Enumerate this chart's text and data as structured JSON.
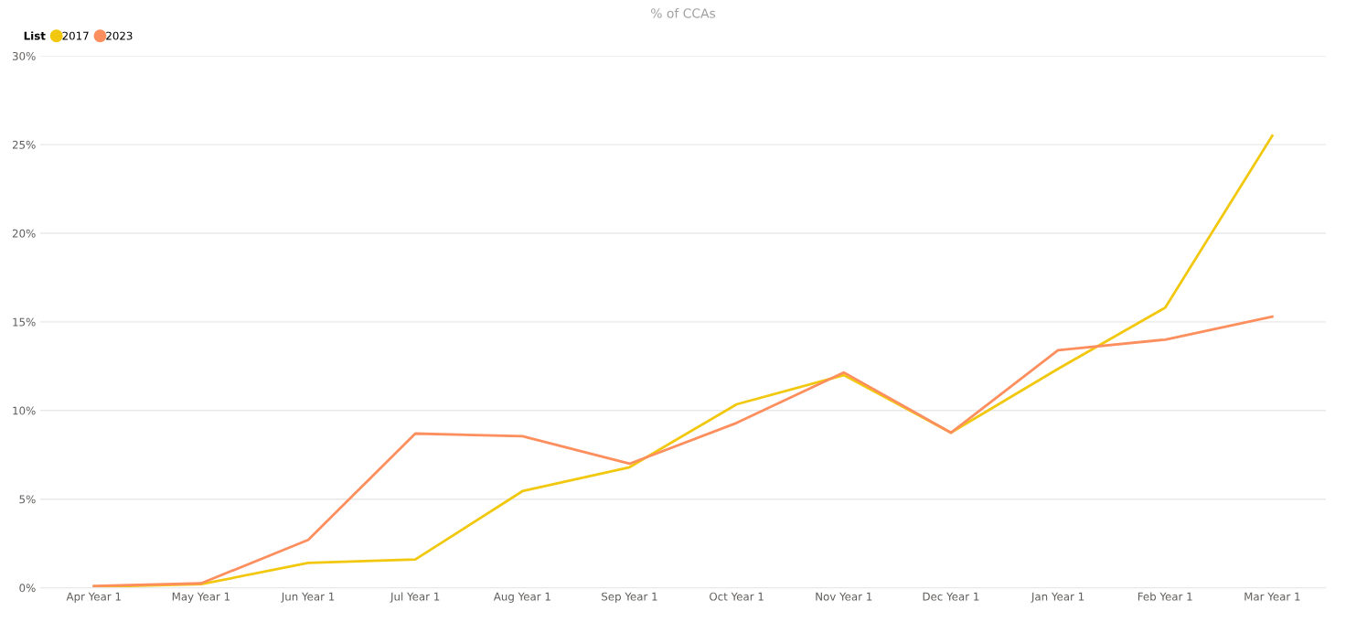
{
  "chart_data": {
    "type": "line",
    "title": "% of CCAs",
    "legend_title": "List",
    "legend": "top left",
    "grid": "y",
    "marker": "none",
    "line_style": "solid",
    "categories": [
      "Apr Year 1",
      "May Year 1",
      "Jun Year 1",
      "Jul Year 1",
      "Aug Year 1",
      "Sep Year 1",
      "Oct Year 1",
      "Nov Year 1",
      "Dec Year 1",
      "Jan Year 1",
      "Feb Year 1",
      "Mar Year 1"
    ],
    "ylim": [
      0,
      30
    ],
    "yticks": [
      {
        "value": 0,
        "label": "0%"
      },
      {
        "value": 5,
        "label": "5%"
      },
      {
        "value": 10,
        "label": "10%"
      },
      {
        "value": 15,
        "label": "15%"
      },
      {
        "value": 20,
        "label": "20%"
      },
      {
        "value": 25,
        "label": "25%"
      },
      {
        "value": 30,
        "label": "30%"
      }
    ],
    "series": [
      {
        "name": "2017",
        "color": "#f2c80f",
        "values": [
          0.05,
          0.2,
          1.4,
          1.6,
          5.45,
          6.8,
          10.35,
          12.0,
          8.75,
          12.35,
          15.8,
          25.5
        ]
      },
      {
        "name": "2023",
        "color": "#fd8f5f",
        "values": [
          0.1,
          0.25,
          2.7,
          8.7,
          8.55,
          7.0,
          9.3,
          12.15,
          8.75,
          13.4,
          14.0,
          15.3
        ]
      }
    ]
  }
}
